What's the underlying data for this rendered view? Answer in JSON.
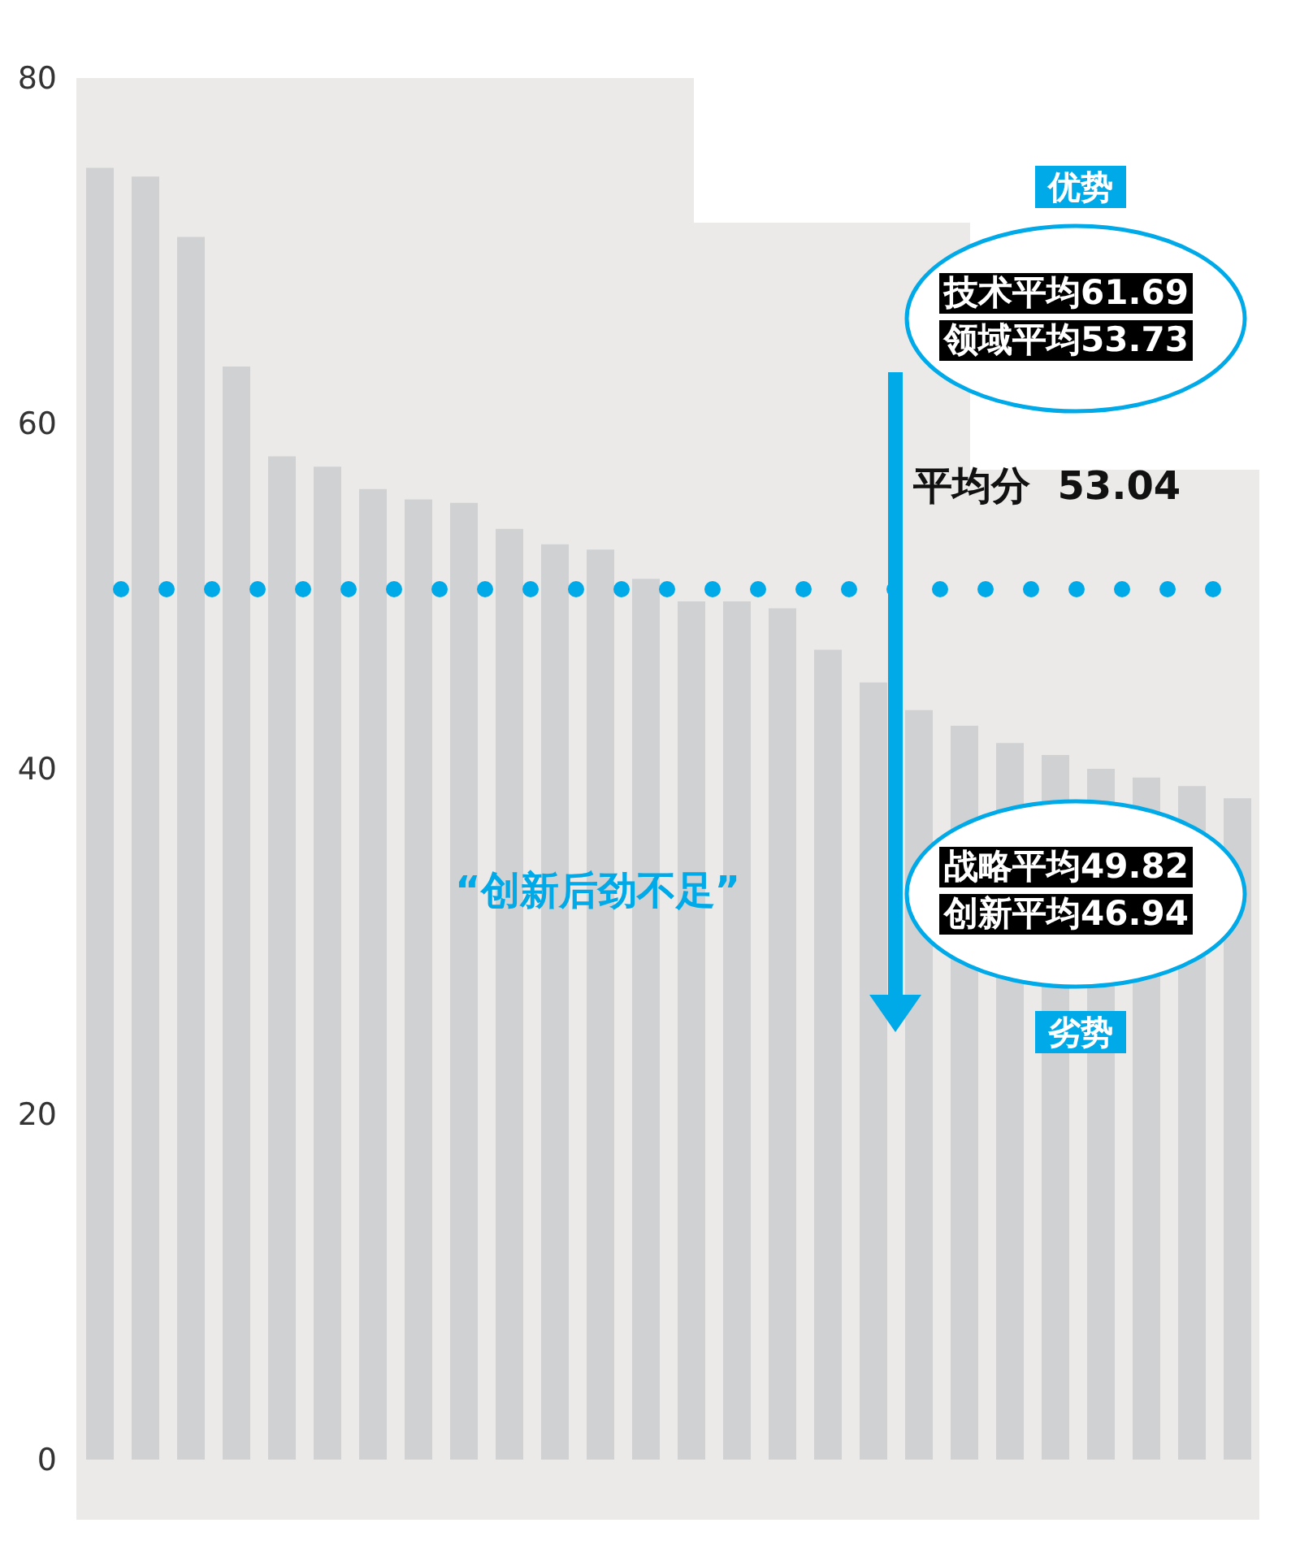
{
  "chart_data": {
    "type": "bar",
    "categories": [
      null,
      null,
      null,
      null,
      null,
      null,
      null,
      null,
      null,
      null,
      null,
      null,
      null,
      null,
      null,
      null,
      null,
      null,
      null,
      null,
      null,
      null,
      null,
      null,
      null,
      null
    ],
    "values": [
      74.8,
      74.3,
      70.8,
      63.3,
      58.1,
      57.5,
      56.2,
      55.6,
      55.4,
      53.9,
      53.0,
      52.7,
      51.0,
      49.7,
      49.7,
      49.3,
      46.9,
      45.0,
      43.4,
      42.5,
      41.5,
      40.8,
      40.0,
      39.5,
      39.0,
      38.3
    ],
    "color": "#cfd1d3",
    "ylim": [
      0,
      80
    ],
    "yticks": [
      0,
      20,
      40,
      60,
      80
    ],
    "tick_labels": "y",
    "ref_lines": [
      {
        "axis": "y",
        "value": 50.4,
        "color": "#00a9e8",
        "line_style": "dotted"
      }
    ],
    "annotations": [
      "优势",
      "技术平均61.69",
      "领域平均53.73",
      "平均分  53.04",
      "战略平均49.82",
      "创新平均46.94",
      "劣势",
      "“创新后劲不足”"
    ]
  }
}
